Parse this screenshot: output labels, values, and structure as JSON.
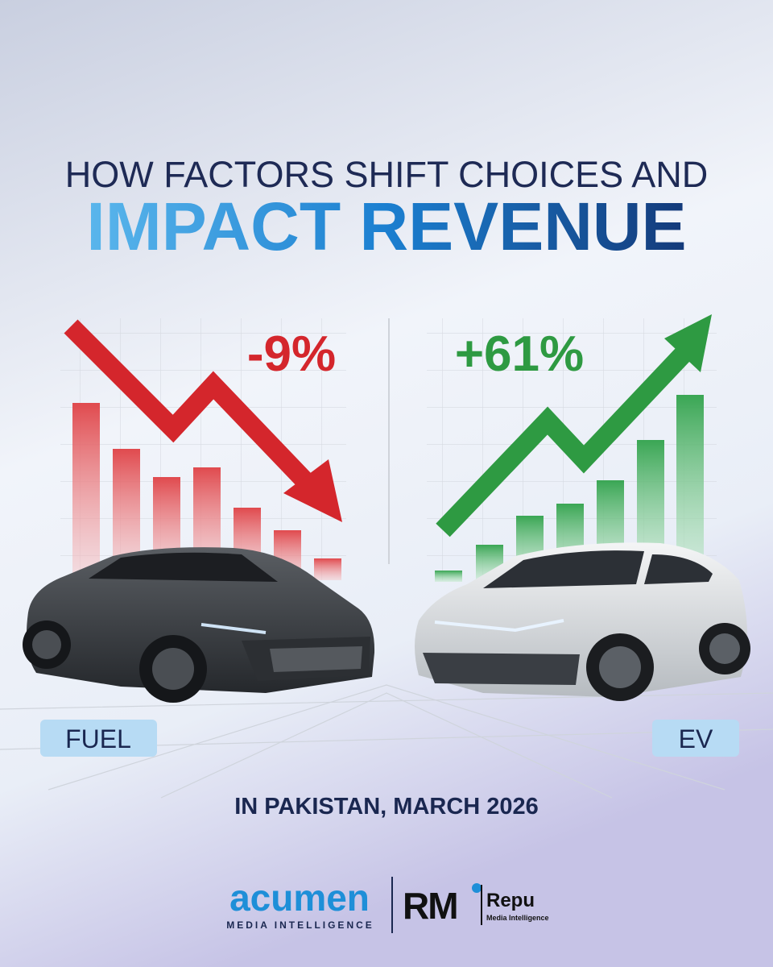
{
  "header": {
    "title_line1": "HOW FACTORS SHIFT CHOICES AND",
    "title_line2": "IMPACT REVENUE"
  },
  "panels": [
    {
      "change": "-9%",
      "label": "FUEL"
    },
    {
      "change": "+61%",
      "label": "EV"
    }
  ],
  "caption": "IN PAKISTAN, MARCH 2026",
  "footer": {
    "brand1": {
      "name": "acumen",
      "tagline": "MEDIA INTELLIGENCE"
    },
    "brand2": {
      "mark": "RM",
      "name": "Repu",
      "tagline": "Media Intelligence"
    }
  }
}
